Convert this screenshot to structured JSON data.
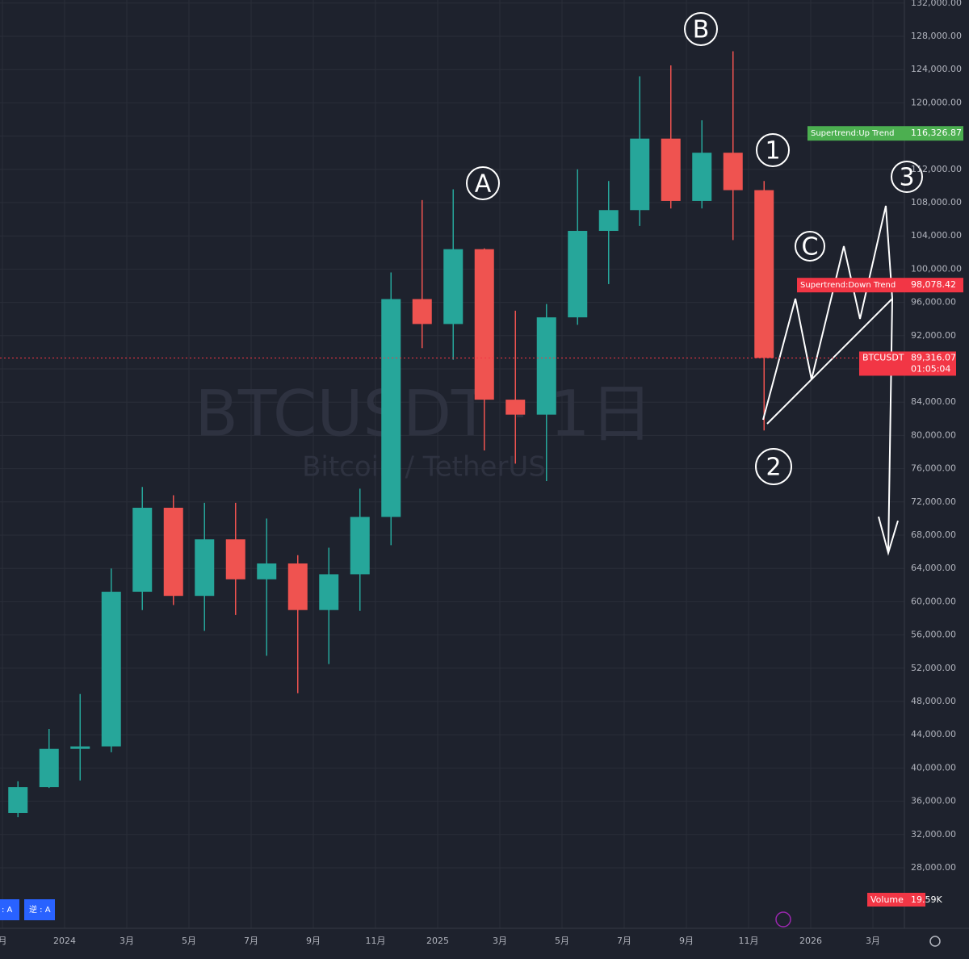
{
  "chart_data": {
    "type": "candlestick",
    "watermark": "BTCUSDT · 1日",
    "watermark_sub": "Bitcoin / TetherUS",
    "categories": [
      "月",
      null,
      "2024",
      null,
      "3月",
      null,
      "5月",
      null,
      "7月",
      null,
      "9月",
      null,
      "11月",
      null,
      "2025",
      null,
      "3月",
      null,
      "5月",
      null,
      "7月",
      null,
      "9月",
      null,
      "11月",
      null,
      "2026",
      null,
      "3月"
    ],
    "open": [
      34600,
      37700,
      42300,
      42600,
      61200,
      71300,
      60700,
      67500,
      62700,
      64600,
      59000,
      63300,
      70200,
      96400,
      93400,
      102400,
      84300,
      82500,
      94200,
      104600,
      107100,
      115700,
      108200,
      114000,
      109500,
      null,
      null,
      null,
      null
    ],
    "high": [
      38400,
      44700,
      48900,
      64000,
      73800,
      72800,
      71900,
      71900,
      70000,
      65600,
      66500,
      73600,
      99600,
      108300,
      109600,
      102500,
      95000,
      95800,
      112000,
      110600,
      123200,
      124500,
      117900,
      126200,
      110600,
      null,
      null,
      null,
      null
    ],
    "low": [
      34100,
      37600,
      38500,
      41900,
      59000,
      59600,
      56500,
      58400,
      53500,
      49000,
      52500,
      58900,
      66800,
      90500,
      89100,
      78200,
      76600,
      74500,
      93300,
      98200,
      105200,
      107300,
      107300,
      103500,
      80600,
      null,
      null,
      null,
      null
    ],
    "close": [
      37700,
      42300,
      42600,
      61200,
      71300,
      60700,
      67500,
      62700,
      64600,
      59000,
      63300,
      70200,
      96400,
      93400,
      102400,
      84300,
      82500,
      94200,
      104600,
      107100,
      115700,
      108200,
      114000,
      109500,
      89316.07,
      null,
      null,
      null,
      null
    ],
    "up_color": "#26a69a",
    "down_color": "#ef5350",
    "ylim": [
      20718,
      132369
    ],
    "yticks": [
      {
        "value": 28000,
        "label": "28,000.00"
      },
      {
        "value": 32000,
        "label": "32,000.00"
      },
      {
        "value": 36000,
        "label": "36,000.00"
      },
      {
        "value": 40000,
        "label": "40,000.00"
      },
      {
        "value": 44000,
        "label": "44,000.00"
      },
      {
        "value": 48000,
        "label": "48,000.00"
      },
      {
        "value": 52000,
        "label": "52,000.00"
      },
      {
        "value": 56000,
        "label": "56,000.00"
      },
      {
        "value": 60000,
        "label": "60,000.00"
      },
      {
        "value": 64000,
        "label": "64,000.00"
      },
      {
        "value": 68000,
        "label": "68,000.00"
      },
      {
        "value": 72000,
        "label": "72,000.00"
      },
      {
        "value": 76000,
        "label": "76,000.00"
      },
      {
        "value": 80000,
        "label": "80,000.00"
      },
      {
        "value": 84000,
        "label": "84,000.00"
      },
      {
        "value": 88000,
        "label": "88,000.00"
      },
      {
        "value": 92000,
        "label": "92,000.00"
      },
      {
        "value": 96000,
        "label": "96,000.00"
      },
      {
        "value": 100000,
        "label": "100,000.00"
      },
      {
        "value": 104000,
        "label": "104,000.00"
      },
      {
        "value": 108000,
        "label": "108,000.00"
      },
      {
        "value": 112000,
        "label": "112,000.00"
      },
      {
        "value": 116000,
        "label": "116,000.00"
      },
      {
        "value": 120000,
        "label": "120,000.00"
      },
      {
        "value": 124000,
        "label": "124,000.00"
      },
      {
        "value": 128000,
        "label": "128,000.00"
      },
      {
        "value": 132000,
        "label": "132,000.00"
      }
    ],
    "grid": true,
    "price_labels": [
      {
        "name": "Supertrend:Up Trend",
        "value": 116326.87,
        "label": "116,326.87",
        "color": "#4caf50"
      },
      {
        "name": "Supertrend:Down Trend",
        "value": 98078.42,
        "label": "98,078.42",
        "color": "#f23645"
      },
      {
        "name": "BTCUSDT",
        "value": 89316.07,
        "label": "89,316.07",
        "color": "#f23645",
        "countdown": "01:05:04"
      }
    ],
    "volume_label": {
      "name": "Volume",
      "label": "19.59K"
    },
    "annotations": [
      "A",
      "B",
      "C",
      "1",
      "2",
      "3"
    ],
    "buttons": [
      ": A",
      "逆 : A"
    ]
  }
}
